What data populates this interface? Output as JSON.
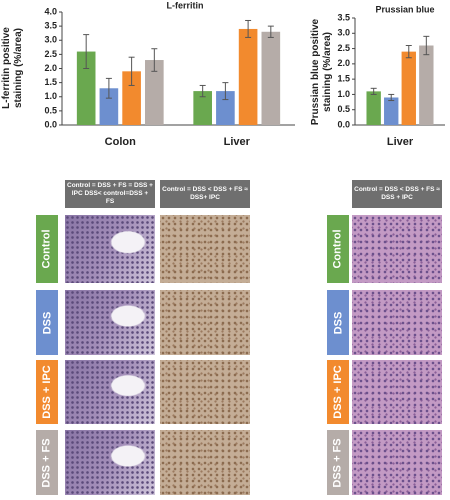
{
  "chart_data": [
    {
      "type": "bar",
      "title": "L-ferritin",
      "y_label": "L-ferritin positive staining (%/area)",
      "categories": [
        "Colon",
        "Liver"
      ],
      "series": [
        {
          "color": "#6aa84f",
          "values": [
            2.6,
            1.2
          ],
          "errors": [
            0.6,
            0.2
          ]
        },
        {
          "color": "#6d8fcf",
          "values": [
            1.3,
            1.2
          ],
          "errors": [
            0.35,
            0.3
          ]
        },
        {
          "color": "#f28a2e",
          "values": [
            1.9,
            3.4
          ],
          "errors": [
            0.5,
            0.3
          ]
        },
        {
          "color": "#b5aca8",
          "values": [
            2.3,
            3.3
          ],
          "errors": [
            0.4,
            0.2
          ]
        }
      ],
      "ylim": [
        0,
        4
      ],
      "yticks": [
        {
          "value": 0,
          "label": "0.0"
        },
        0.5,
        {
          "value": 1,
          "label": "1.0"
        },
        1.5,
        {
          "value": 2,
          "label": "2.0"
        },
        2.5,
        {
          "value": 3,
          "label": "3.0"
        },
        3.5,
        {
          "value": 4,
          "label": "4.0"
        }
      ]
    },
    {
      "type": "bar",
      "title": "Prussian blue",
      "y_label": "Prussian blue positive staining (%/area)",
      "categories": [
        "Liver"
      ],
      "series": [
        {
          "color": "#6aa84f",
          "values": [
            1.1
          ],
          "errors": [
            0.1
          ]
        },
        {
          "color": "#6d8fcf",
          "values": [
            0.9
          ],
          "errors": [
            0.1
          ]
        },
        {
          "color": "#f28a2e",
          "values": [
            2.4
          ],
          "errors": [
            0.2
          ]
        },
        {
          "color": "#b5aca8",
          "values": [
            2.6
          ],
          "errors": [
            0.3
          ]
        }
      ],
      "ylim": [
        0,
        3.5
      ],
      "yticks": [
        {
          "value": 0,
          "label": "0.0"
        },
        0.5,
        {
          "value": 1,
          "label": "1.0"
        },
        1.5,
        {
          "value": 2,
          "label": "2.0"
        },
        2.5,
        {
          "value": 3,
          "label": "3.0"
        },
        3.5
      ]
    }
  ],
  "image_panels": {
    "column_headers": [
      "Control = DSS + FS = DSS + IPC DSS< control=DSS + FS",
      "Control = DSS < DSS + FS ≈ DSS+ IPC",
      "Control = DSS < DSS + FS ≈ DSS + IPC"
    ],
    "row_labels": [
      "Control",
      "DSS",
      "DSS + IPC",
      "DSS + FS"
    ]
  }
}
